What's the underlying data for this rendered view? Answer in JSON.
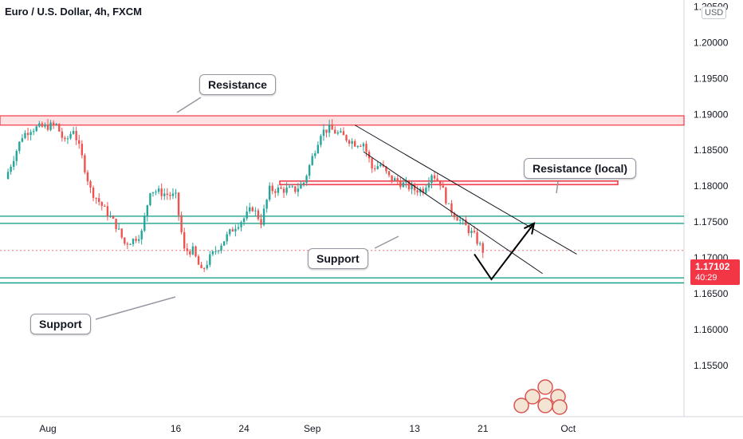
{
  "title": "Euro / U.S. Dollar, 4h, FXCM",
  "currency_label": "USD",
  "last_price": "1.17102",
  "countdown": "40:29",
  "colors": {
    "up": "#26a69a",
    "down": "#ef5350",
    "resistance_line": "#f23645",
    "support_line": "#089981",
    "last_price_badge": "#f23645"
  },
  "annotations": {
    "resistance": "Resistance",
    "resistance_local": "Resistance (local)",
    "support_mid": "Support",
    "support_low": "Support"
  },
  "chart_data": {
    "type": "candlestick",
    "symbol": "EURUSD",
    "timeframe": "4h",
    "x_tick_labels": [
      "Aug",
      "16",
      "24",
      "Sep",
      "13",
      "21",
      "Oct"
    ],
    "y_tick_labels": [
      "1.20500",
      "1.20000",
      "1.19500",
      "1.19000",
      "1.18500",
      "1.18000",
      "1.17500",
      "1.17000",
      "1.16500",
      "1.16000",
      "1.15500"
    ],
    "ylim": [
      1.1513,
      1.2055
    ],
    "close_path": [
      [
        "Jul 27",
        1.181
      ],
      [
        "Jul 28",
        1.184
      ],
      [
        "Jul 29",
        1.187
      ],
      [
        "Jul 30",
        1.188
      ],
      [
        "Aug 2",
        1.1885
      ],
      [
        "Aug 3",
        1.186
      ],
      [
        "Aug 4",
        1.188
      ],
      [
        "Aug 5",
        1.184
      ],
      [
        "Aug 6",
        1.1795
      ],
      [
        "Aug 9",
        1.1745
      ],
      [
        "Aug 10",
        1.172
      ],
      [
        "Aug 11",
        1.1725
      ],
      [
        "Aug 12",
        1.1735
      ],
      [
        "Aug 13",
        1.1795
      ],
      [
        "Aug 16",
        1.1785
      ],
      [
        "Aug 17",
        1.171
      ],
      [
        "Aug 18",
        1.171
      ],
      [
        "Aug 19",
        1.168
      ],
      [
        "Aug 20",
        1.17
      ],
      [
        "Aug 23",
        1.1745
      ],
      [
        "Aug 24",
        1.1755
      ],
      [
        "Aug 25",
        1.177
      ],
      [
        "Aug 26",
        1.175
      ],
      [
        "Aug 27",
        1.1795
      ],
      [
        "Aug 30",
        1.1795
      ],
      [
        "Aug 31",
        1.1805
      ],
      [
        "Sep 1",
        1.184
      ],
      [
        "Sep 2",
        1.1875
      ],
      [
        "Sep 3",
        1.188
      ],
      [
        "Sep 6",
        1.186
      ],
      [
        "Sep 7",
        1.186
      ],
      [
        "Sep 8",
        1.1825
      ],
      [
        "Sep 9",
        1.183
      ],
      [
        "Sep 10",
        1.1812
      ],
      [
        "Sep 13",
        1.1795
      ],
      [
        "Sep 14",
        1.1795
      ],
      [
        "Sep 15",
        1.1818
      ],
      [
        "Sep 16",
        1.1805
      ],
      [
        "Sep 17",
        1.177
      ],
      [
        "Sep 20",
        1.173
      ],
      [
        "Sep 21",
        1.171
      ]
    ],
    "horizontal_levels": [
      {
        "name": "Resistance",
        "from": 1.1885,
        "to": 1.1898,
        "kind": "zone"
      },
      {
        "name": "Resistance (local)",
        "from": 1.1802,
        "to": 1.1807,
        "kind": "box"
      },
      {
        "name": "Support",
        "value": 1.1758,
        "kind": "line"
      },
      {
        "name": "Support",
        "value": 1.1748,
        "kind": "line"
      },
      {
        "name": "Support",
        "value": 1.1672,
        "kind": "line"
      },
      {
        "name": "Support",
        "value": 1.1665,
        "kind": "line"
      }
    ],
    "descending_channel": {
      "upper": [
        [
          "Sep 6",
          1.1885
        ],
        [
          "Oct 2",
          1.1705
        ]
      ],
      "lower": [
        [
          "Sep 7",
          1.1848
        ],
        [
          "Sep 28",
          1.1678
        ]
      ]
    },
    "projection_path": [
      [
        "Sep 20",
        1.1705
      ],
      [
        "Sep 22",
        1.167
      ],
      [
        "Sep 27",
        1.1748
      ]
    ],
    "last_price": 1.17102,
    "grid": false,
    "legend": "none"
  }
}
